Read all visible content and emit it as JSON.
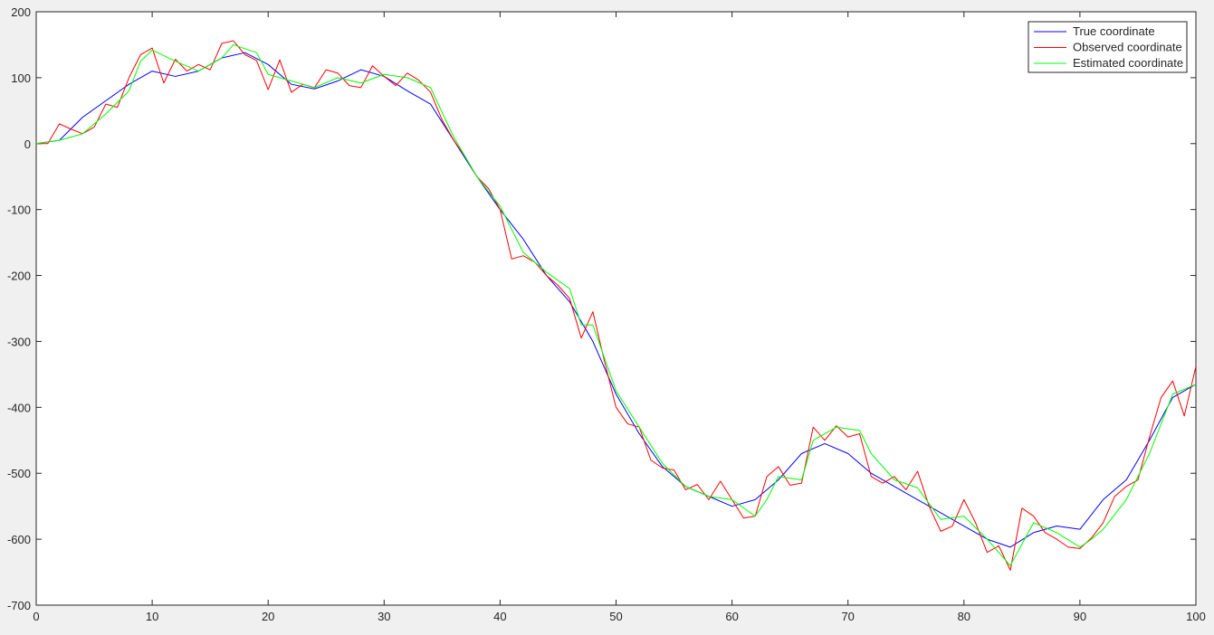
{
  "chart_data": {
    "type": "line",
    "title": "",
    "xlabel": "",
    "ylabel": "",
    "xlim": [
      0,
      100
    ],
    "ylim": [
      -700,
      200
    ],
    "xticks": [
      0,
      10,
      20,
      30,
      40,
      50,
      60,
      70,
      80,
      90,
      100
    ],
    "yticks": [
      200,
      100,
      0,
      -100,
      -200,
      -300,
      -400,
      -500,
      -600,
      -700
    ],
    "grid": false,
    "legend_position": "top-right",
    "series": [
      {
        "name": "True coordinate",
        "color": "#0000ff",
        "x": [
          0,
          2,
          4,
          6,
          8,
          10,
          12,
          14,
          16,
          18,
          20,
          22,
          24,
          26,
          28,
          30,
          32,
          34,
          36,
          38,
          40,
          42,
          44,
          46,
          48,
          50,
          52,
          54,
          56,
          58,
          60,
          62,
          64,
          66,
          68,
          70,
          72,
          74,
          76,
          78,
          80,
          82,
          84,
          86,
          88,
          90,
          92,
          94,
          96,
          98,
          100
        ],
        "y": [
          0,
          5,
          40,
          65,
          90,
          110,
          102,
          110,
          130,
          138,
          120,
          90,
          83,
          95,
          112,
          102,
          80,
          60,
          5,
          -50,
          -100,
          -145,
          -200,
          -240,
          -300,
          -380,
          -440,
          -490,
          -520,
          -535,
          -550,
          -540,
          -510,
          -470,
          -455,
          -470,
          -500,
          -520,
          -540,
          -560,
          -580,
          -600,
          -612,
          -590,
          -580,
          -585,
          -540,
          -510,
          -450,
          -385,
          -365
        ]
      },
      {
        "name": "Observed coordinate",
        "color": "#ff0000",
        "x": [
          0,
          1,
          2,
          3,
          4,
          5,
          6,
          7,
          8,
          9,
          10,
          11,
          12,
          13,
          14,
          15,
          16,
          17,
          18,
          19,
          20,
          21,
          22,
          23,
          24,
          25,
          26,
          27,
          28,
          29,
          30,
          31,
          32,
          33,
          34,
          35,
          36,
          37,
          38,
          39,
          40,
          41,
          42,
          43,
          44,
          45,
          46,
          47,
          48,
          49,
          50,
          51,
          52,
          53,
          54,
          55,
          56,
          57,
          58,
          59,
          60,
          61,
          62,
          63,
          64,
          65,
          66,
          67,
          68,
          69,
          70,
          71,
          72,
          73,
          74,
          75,
          76,
          77,
          78,
          79,
          80,
          81,
          82,
          83,
          84,
          85,
          86,
          87,
          88,
          89,
          90,
          91,
          92,
          93,
          94,
          95,
          96,
          97,
          98,
          99,
          100
        ],
        "y": [
          0,
          0,
          30,
          22,
          15,
          25,
          60,
          55,
          100,
          135,
          145,
          92,
          128,
          110,
          120,
          112,
          152,
          156,
          135,
          126,
          82,
          127,
          78,
          90,
          85,
          112,
          107,
          88,
          85,
          118,
          102,
          88,
          107,
          96,
          78,
          36,
          5,
          -20,
          -50,
          -68,
          -100,
          -175,
          -170,
          -180,
          -200,
          -215,
          -235,
          -295,
          -255,
          -330,
          -400,
          -425,
          -430,
          -480,
          -492,
          -495,
          -525,
          -517,
          -540,
          -512,
          -540,
          -568,
          -565,
          -505,
          -490,
          -518,
          -515,
          -430,
          -450,
          -428,
          -445,
          -440,
          -505,
          -515,
          -505,
          -525,
          -497,
          -550,
          -588,
          -580,
          -540,
          -575,
          -620,
          -610,
          -647,
          -553,
          -565,
          -590,
          -600,
          -612,
          -614,
          -598,
          -575,
          -535,
          -520,
          -510,
          -445,
          -385,
          -360,
          -413,
          -338
        ]
      },
      {
        "name": "Estimated coordinate",
        "color": "#00ff00",
        "x": [
          0,
          2,
          4,
          6,
          8,
          9,
          10,
          12,
          14,
          16,
          17,
          19,
          20,
          22,
          24,
          26,
          28,
          30,
          32,
          34,
          36,
          38,
          40,
          42,
          44,
          46,
          47,
          48,
          50,
          52,
          54,
          56,
          58,
          60,
          62,
          63,
          64,
          66,
          67,
          69,
          71,
          72,
          74,
          76,
          78,
          80,
          82,
          84,
          86,
          88,
          90,
          91,
          92,
          94,
          96,
          98,
          100
        ],
        "y": [
          0,
          5,
          15,
          45,
          80,
          125,
          142,
          125,
          110,
          130,
          150,
          138,
          105,
          95,
          85,
          100,
          92,
          105,
          100,
          85,
          10,
          -50,
          -95,
          -165,
          -195,
          -220,
          -275,
          -275,
          -375,
          -430,
          -485,
          -520,
          -535,
          -540,
          -565,
          -540,
          -505,
          -510,
          -450,
          -430,
          -435,
          -470,
          -510,
          -522,
          -570,
          -565,
          -600,
          -640,
          -575,
          -590,
          -612,
          -600,
          -585,
          -540,
          -470,
          -380,
          -365
        ]
      }
    ]
  }
}
